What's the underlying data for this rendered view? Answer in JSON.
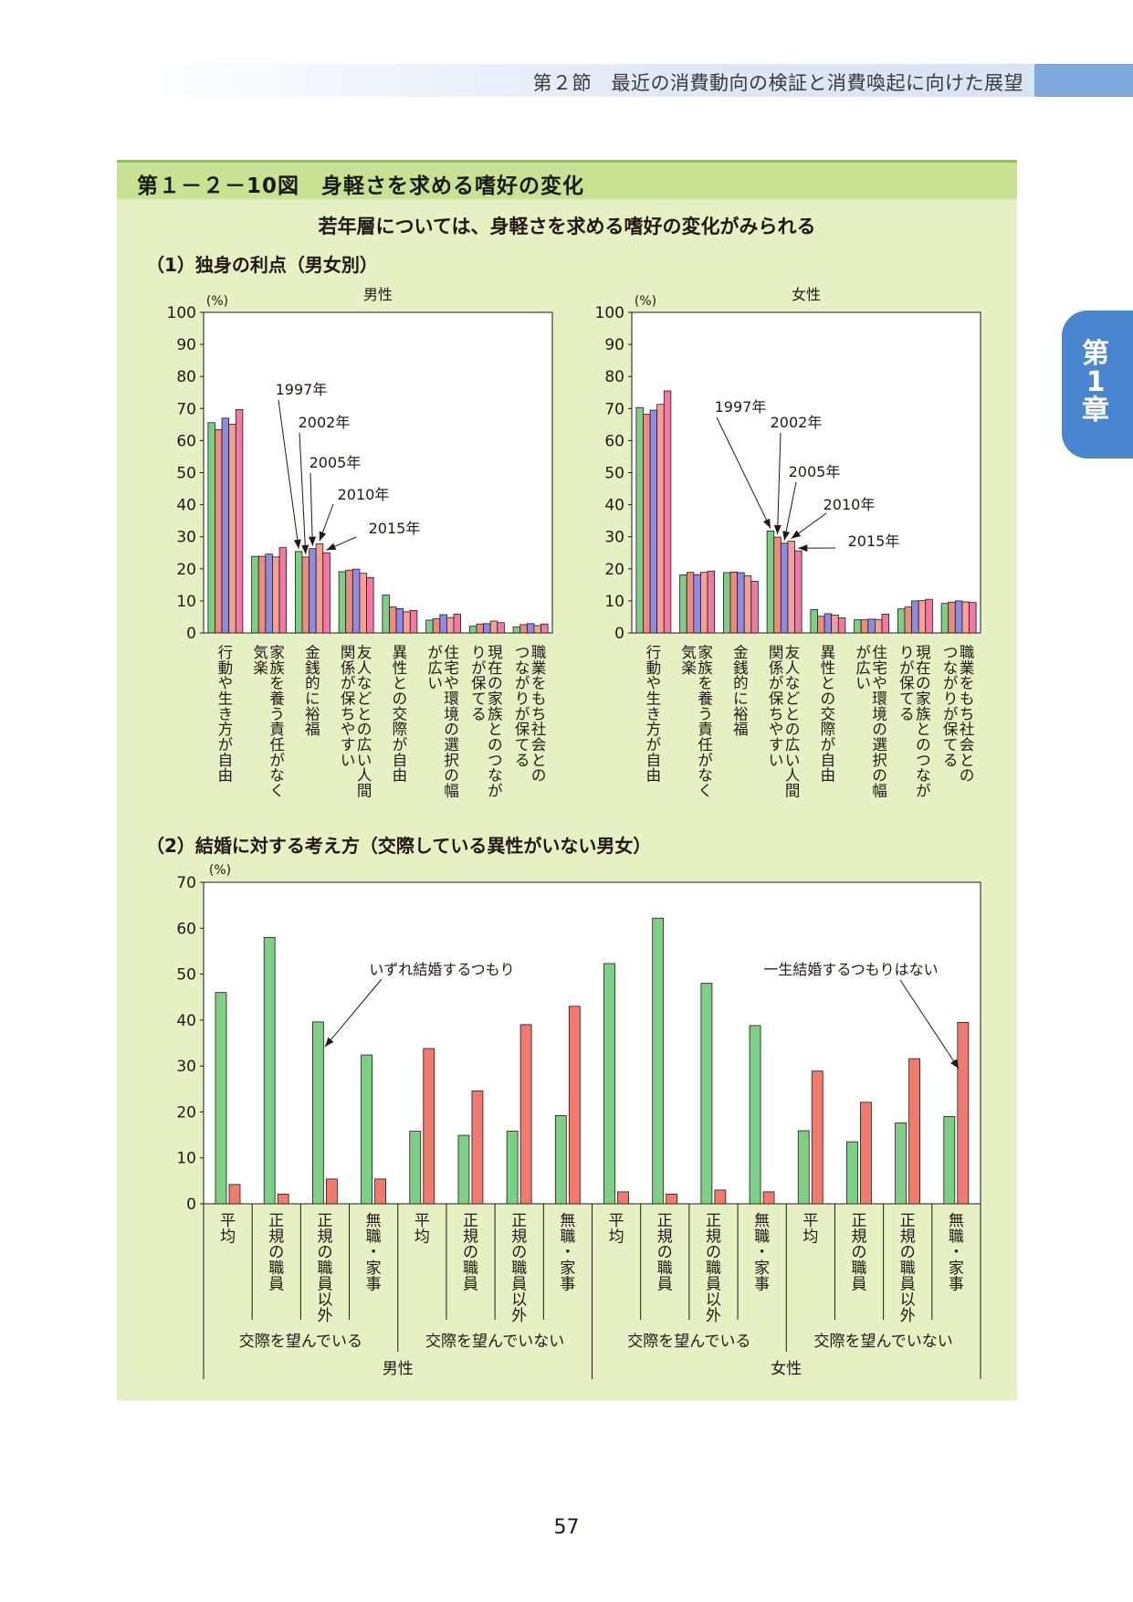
{
  "header": {
    "text": "第２節　最近の消費動向の検証と消費喚起に向けた展望"
  },
  "chapter_tab": {
    "line1": "第",
    "line2": "1",
    "line3": "章"
  },
  "figure": {
    "title": "第１－２－10図　身軽さを求める嗜好の変化",
    "subtitle": "若年層については、身軽さを求める嗜好の変化がみられる",
    "section1_title": "（1）独身の利点（男女別）",
    "section2_title": "（2）結婚に対する考え方（交際している異性がいない男女）"
  },
  "page_number": "57",
  "colors": {
    "y1997": "#7ccf84",
    "y2002": "#f08a7e",
    "y2005": "#8c8ce6",
    "y2010": "#f4a191",
    "y2015": "#ef7aa6",
    "green": "#7ccf84",
    "red": "#f07a6e"
  },
  "chart_data": [
    {
      "type": "bar",
      "title": "男性",
      "ylabel": "(%)",
      "ylim": [
        0,
        100
      ],
      "yticks": [
        0,
        10,
        20,
        30,
        40,
        50,
        60,
        70,
        80,
        90,
        100
      ],
      "categories": [
        "行動や生き方が自由",
        "家族を養う責任がなく気楽",
        "金銭的に裕福",
        "友人などとの広い人間関係が保ちやすい",
        "異性との交際が自由",
        "住宅や環境の選択の幅が広い",
        "現在の家族とのつながりが保てる",
        "職業をもち社会とのつながりが保てる"
      ],
      "category_lines": [
        [
          "行動や生き方が自由"
        ],
        [
          "家族を養う責任がなく",
          "気楽"
        ],
        [
          "金銭的に裕福"
        ],
        [
          "友人などとの広い人間",
          "関係が保ちやすい"
        ],
        [
          "異性との交際が自由"
        ],
        [
          "住宅や環境の選択の幅",
          "が広い"
        ],
        [
          "現在の家族とのつなが",
          "りが保てる"
        ],
        [
          "職業をもち社会との",
          "つながりが保てる"
        ]
      ],
      "series": [
        {
          "name": "1997年",
          "color": "#7ccf84",
          "values": [
            65.6,
            23.9,
            25.4,
            19.1,
            11.8,
            4.0,
            2.1,
            1.9
          ]
        },
        {
          "name": "2002年",
          "color": "#f08a7e",
          "values": [
            63.4,
            23.9,
            23.7,
            19.6,
            8.1,
            4.4,
            2.8,
            2.6
          ]
        },
        {
          "name": "2005年",
          "color": "#8c8ce6",
          "values": [
            67.0,
            24.6,
            26.3,
            19.9,
            7.6,
            5.7,
            2.9,
            2.9
          ]
        },
        {
          "name": "2010年",
          "color": "#f4a191",
          "values": [
            65.1,
            23.7,
            27.8,
            18.6,
            6.6,
            4.8,
            3.7,
            2.3
          ]
        },
        {
          "name": "2015年",
          "color": "#ef7aa6",
          "values": [
            69.7,
            26.6,
            25.0,
            17.3,
            7.0,
            5.9,
            3.2,
            2.8
          ]
        }
      ]
    },
    {
      "type": "bar",
      "title": "女性",
      "ylabel": "(%)",
      "ylim": [
        0,
        100
      ],
      "yticks": [
        0,
        10,
        20,
        30,
        40,
        50,
        60,
        70,
        80,
        90,
        100
      ],
      "categories": [
        "行動や生き方が自由",
        "家族を養う責任がなく気楽",
        "金銭的に裕福",
        "友人などとの広い人間関係が保ちやすい",
        "異性との交際が自由",
        "住宅や環境の選択の幅が広い",
        "現在の家族とのつながりが保てる",
        "職業をもち社会とのつながりが保てる"
      ],
      "category_lines": [
        [
          "行動や生き方が自由"
        ],
        [
          "家族を養う責任がなく",
          "気楽"
        ],
        [
          "金銭的に裕福"
        ],
        [
          "友人などとの広い人間",
          "関係が保ちやすい"
        ],
        [
          "異性との交際が自由"
        ],
        [
          "住宅や環境の選択の幅",
          "が広い"
        ],
        [
          "現在の家族とのつなが",
          "りが保てる"
        ],
        [
          "職業をもち社会との",
          "つながりが保てる"
        ]
      ],
      "series": [
        {
          "name": "1997年",
          "color": "#7ccf84",
          "values": [
            70.3,
            18.1,
            18.8,
            31.8,
            7.3,
            4.1,
            7.5,
            9.2
          ]
        },
        {
          "name": "2002年",
          "color": "#f08a7e",
          "values": [
            68.2,
            18.9,
            19.0,
            29.9,
            5.2,
            4.1,
            8.1,
            9.6
          ]
        },
        {
          "name": "2005年",
          "color": "#8c8ce6",
          "values": [
            69.5,
            18.2,
            18.8,
            28.0,
            6.0,
            4.3,
            10.0,
            10.0
          ]
        },
        {
          "name": "2010年",
          "color": "#f4a191",
          "values": [
            71.3,
            18.9,
            17.8,
            28.6,
            5.6,
            4.2,
            10.1,
            9.7
          ]
        },
        {
          "name": "2015年",
          "color": "#ef7aa6",
          "values": [
            75.5,
            19.3,
            16.1,
            25.6,
            4.7,
            5.9,
            10.5,
            9.5
          ]
        }
      ]
    },
    {
      "type": "bar",
      "ylabel": "(%)",
      "ylim": [
        0,
        70
      ],
      "yticks": [
        0,
        10,
        20,
        30,
        40,
        50,
        60,
        70
      ],
      "categories": [
        "平均",
        "正規の職員",
        "正規の職員以外",
        "無職・家事",
        "平均",
        "正規の職員",
        "正規の職員以外",
        "無職・家事",
        "平均",
        "正規の職員",
        "正規の職員以外",
        "無職・家事",
        "平均",
        "正規の職員",
        "正規の職員以外",
        "無職・家事"
      ],
      "group_labels": [
        "交際を望んでいる",
        "交際を望んでいない",
        "交際を望んでいる",
        "交際を望んでいない"
      ],
      "sex_labels": [
        "男性",
        "女性"
      ],
      "series": [
        {
          "name": "いずれ結婚するつもり",
          "color": "#7ccf84",
          "values": [
            46.0,
            58.0,
            39.6,
            32.4,
            15.8,
            14.9,
            15.8,
            19.2,
            52.3,
            62.2,
            48.0,
            38.8,
            15.9,
            13.5,
            17.6,
            19.0
          ]
        },
        {
          "name": "一生結婚するつもりはない",
          "color": "#f07a6e",
          "values": [
            4.2,
            2.1,
            5.4,
            5.4,
            33.8,
            24.6,
            39.0,
            43.0,
            2.6,
            2.1,
            3.0,
            2.6,
            28.9,
            22.1,
            31.6,
            39.5
          ]
        }
      ]
    }
  ]
}
